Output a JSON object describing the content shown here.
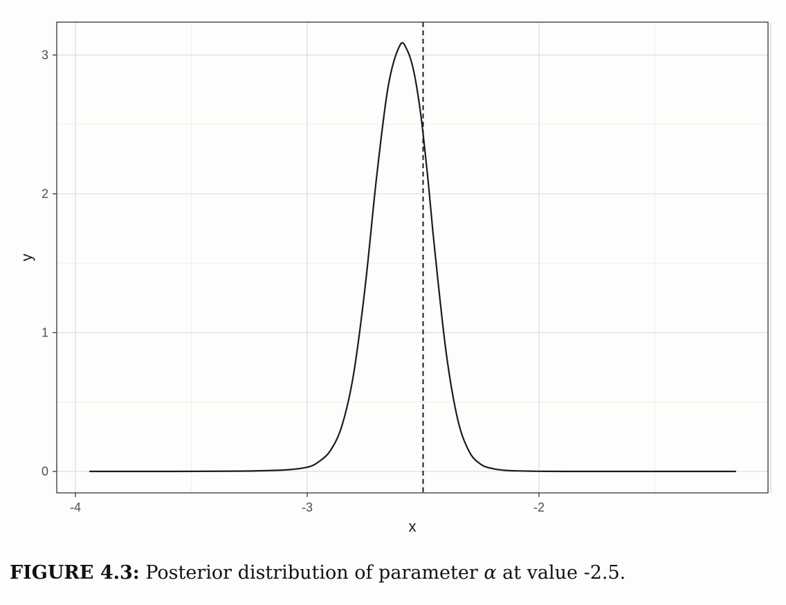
{
  "chart_data": {
    "type": "line",
    "title": "",
    "xlabel": "x",
    "ylabel": "y",
    "xlim": [
      -4.0,
      -1.0
    ],
    "ylim": [
      0,
      3.1
    ],
    "x_ticks": [
      -4,
      -3,
      -2
    ],
    "x_tick_labels": [
      "-4",
      "-3",
      "-2"
    ],
    "y_ticks": [
      0,
      1,
      2,
      3
    ],
    "y_tick_labels": [
      "0",
      "1",
      "2",
      "3"
    ],
    "grid": true,
    "legend": "none",
    "series": [
      {
        "x": [
          -3.94,
          -3.6,
          -3.3,
          -3.1,
          -3.0,
          -2.95,
          -2.9,
          -2.85,
          -2.8,
          -2.75,
          -2.7,
          -2.65,
          -2.6,
          -2.57,
          -2.54,
          -2.51,
          -2.48,
          -2.45,
          -2.4,
          -2.35,
          -2.3,
          -2.25,
          -2.2,
          -2.15,
          -2.1,
          -2.0,
          -1.9,
          -1.7,
          -1.5,
          -1.15
        ],
        "y": [
          0.0,
          0.0,
          0.002,
          0.01,
          0.03,
          0.07,
          0.15,
          0.33,
          0.7,
          1.33,
          2.13,
          2.78,
          3.07,
          3.04,
          2.88,
          2.57,
          2.12,
          1.6,
          0.85,
          0.37,
          0.14,
          0.05,
          0.02,
          0.008,
          0.004,
          0.001,
          0.0,
          0.0,
          0.0,
          0.0
        ],
        "color": "#1a1a1a"
      }
    ],
    "reference_line": {
      "orientation": "vertical",
      "x": -2.5,
      "style": "dashed",
      "color": "#1a1a1a"
    },
    "colors": {
      "panel_background": "#fdfdfb",
      "grid_major": "#e3e3e3",
      "grid_minor": "#efefef",
      "border": "#333333"
    }
  },
  "caption": {
    "label": "FIGURE 4.3:",
    "text_before": " Posterior distribution of parameter ",
    "symbol": "α",
    "text_after": " at value -2.5."
  }
}
